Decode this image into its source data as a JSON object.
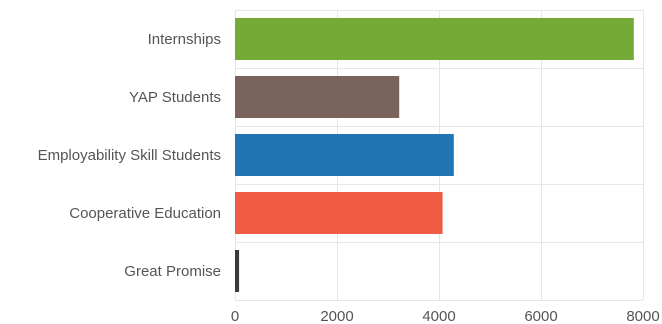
{
  "chart_data": {
    "type": "bar",
    "orientation": "horizontal",
    "categories": [
      "Internships",
      "YAP Students",
      "Employability Skill Students",
      "Cooperative Education",
      "Great Promise"
    ],
    "values": [
      7820,
      3220,
      4290,
      4070,
      80
    ],
    "colors": [
      "#76aa37",
      "#7a625d",
      "#2275b3",
      "#ef5b43",
      "#3a3a3a"
    ],
    "title": "",
    "xlabel": "",
    "ylabel": "",
    "xlim": [
      0,
      8000
    ],
    "xticks": [
      0,
      2000,
      4000,
      6000,
      8000
    ],
    "grid": true,
    "legend": "none"
  }
}
